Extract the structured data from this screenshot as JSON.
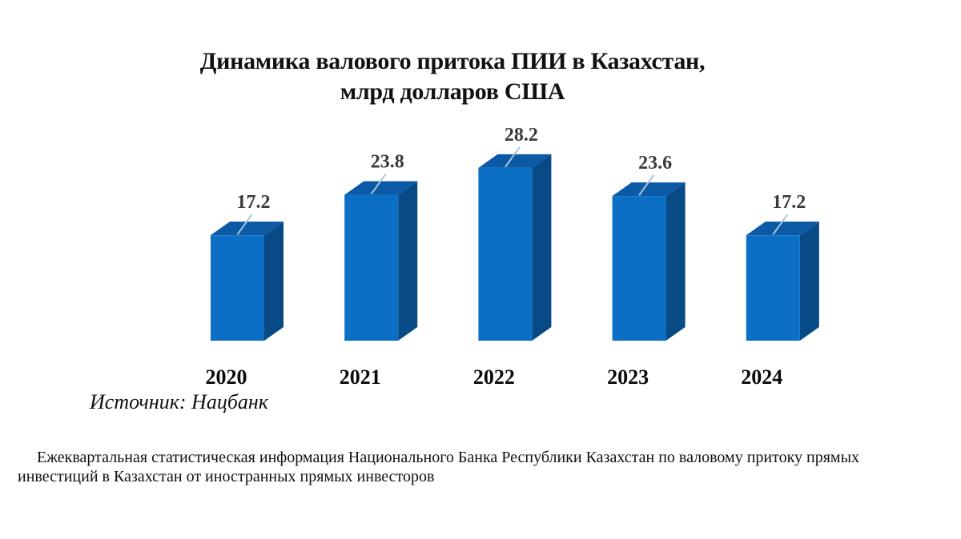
{
  "title": {
    "line1": "Динамика валового притока ПИИ в Казахстан,",
    "line2": "млрд долларов США"
  },
  "source": "Источник: Нацбанк",
  "footnote": "Ежеквартальная статистическая информация Национального Банка Республики Казахстан по валовому притоку прямых инвестиций в Казахстан от иностранных прямых инвесторов",
  "colors": {
    "bar_front": "#0B6FC6",
    "bar_top": "#0C5AA6",
    "bar_side": "#074A86",
    "leader_line": "#A9C4DA",
    "value_label": "#3A3A3A"
  },
  "chart_data": {
    "type": "bar",
    "style": "3d-column",
    "title": "Динамика валового притока ПИИ в Казахстан, млрд долларов США",
    "xlabel": "",
    "ylabel": "млрд долларов США",
    "categories": [
      "2020",
      "2021",
      "2022",
      "2023",
      "2024"
    ],
    "values": [
      17.2,
      23.8,
      28.2,
      23.6,
      17.2
    ],
    "value_labels": [
      "17.2",
      "23.8",
      "28.2",
      "23.6",
      "17.2"
    ],
    "grid": false,
    "legend": null,
    "axes_visible": false
  }
}
